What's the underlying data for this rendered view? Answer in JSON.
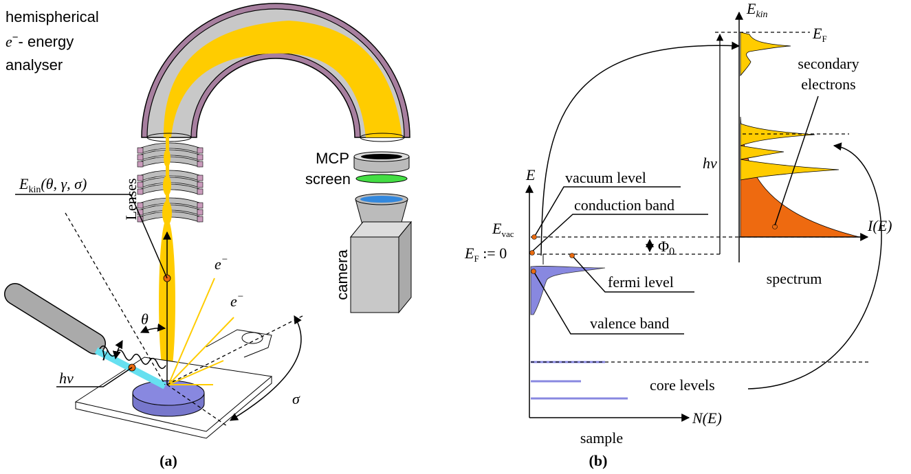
{
  "panel_a": {
    "caption": "(a)",
    "analyser_title": {
      "line1": "hemispherical",
      "line2": {
        "base": "e",
        "sup": "−",
        "rest": "- energy"
      },
      "line3": "analyser"
    },
    "mcp": "MCP",
    "screen": "screen",
    "camera": "camera",
    "lenses": "Lenses",
    "kinetic_energy": {
      "base": "E",
      "sub": "kin",
      "rest": "(θ, γ, σ)"
    },
    "theta": "θ",
    "gamma": "γ",
    "sigma": "σ",
    "photon": "hν",
    "electrons": [
      {
        "base": "e",
        "sup": "−"
      },
      {
        "base": "e",
        "sup": "−"
      }
    ]
  },
  "panel_b": {
    "caption": "(b)",
    "kinetic_axis": {
      "base": "E",
      "sub": "kin"
    },
    "fermi_top": {
      "base": "E",
      "sub": "F"
    },
    "secondary_electrons": [
      "secondary",
      "electrons"
    ],
    "photon": "hν",
    "energy_axis": "E",
    "vacuum_level": "vacuum level",
    "conduction_band": "conduction band",
    "vacuum_energy": {
      "base": "E",
      "sub": "vac"
    },
    "fermi_energy": {
      "base": "E",
      "sub": "F",
      "rest": " := 0"
    },
    "work_function": {
      "base": "Φ",
      "sub": "0"
    },
    "intensity_axis": "I(E)",
    "fermi_level": "fermi level",
    "spectrum": "spectrum",
    "valence_band": "valence band",
    "core_levels": "core levels",
    "dos_axis": "N(E)",
    "sample": "sample"
  }
}
